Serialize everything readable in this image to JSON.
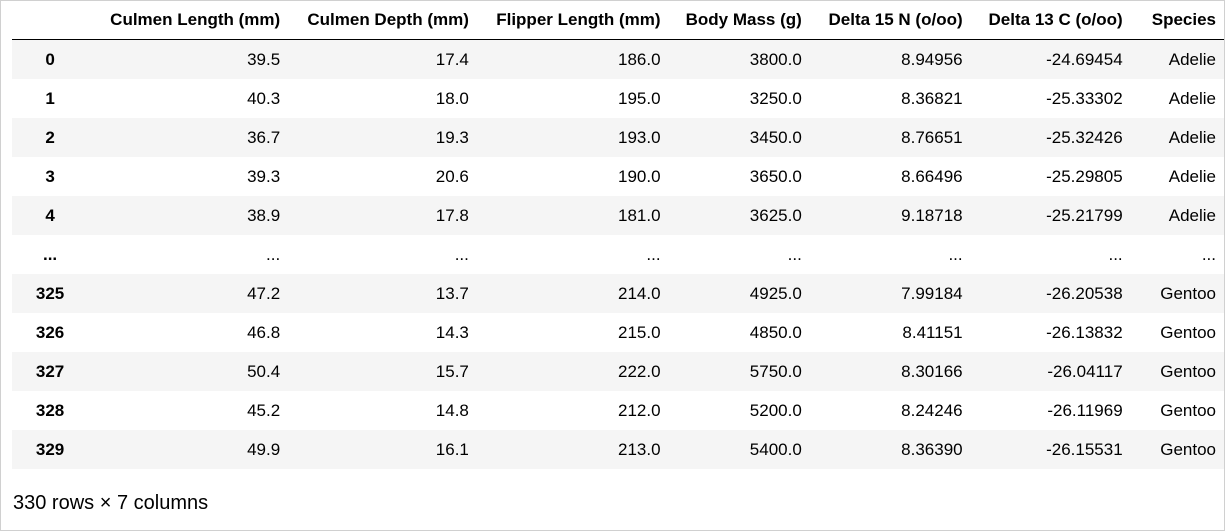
{
  "table": {
    "columns": [
      "Culmen Length (mm)",
      "Culmen Depth (mm)",
      "Flipper Length (mm)",
      "Body Mass (g)",
      "Delta 15 N (o/oo)",
      "Delta 13 C (o/oo)",
      "Species"
    ],
    "rows": [
      {
        "index": "0",
        "cells": [
          "39.5",
          "17.4",
          "186.0",
          "3800.0",
          "8.94956",
          "-24.69454",
          "Adelie"
        ]
      },
      {
        "index": "1",
        "cells": [
          "40.3",
          "18.0",
          "195.0",
          "3250.0",
          "8.36821",
          "-25.33302",
          "Adelie"
        ]
      },
      {
        "index": "2",
        "cells": [
          "36.7",
          "19.3",
          "193.0",
          "3450.0",
          "8.76651",
          "-25.32426",
          "Adelie"
        ]
      },
      {
        "index": "3",
        "cells": [
          "39.3",
          "20.6",
          "190.0",
          "3650.0",
          "8.66496",
          "-25.29805",
          "Adelie"
        ]
      },
      {
        "index": "4",
        "cells": [
          "38.9",
          "17.8",
          "181.0",
          "3625.0",
          "9.18718",
          "-25.21799",
          "Adelie"
        ]
      },
      {
        "index": "...",
        "cells": [
          "...",
          "...",
          "...",
          "...",
          "...",
          "...",
          "..."
        ]
      },
      {
        "index": "325",
        "cells": [
          "47.2",
          "13.7",
          "214.0",
          "4925.0",
          "7.99184",
          "-26.20538",
          "Gentoo"
        ]
      },
      {
        "index": "326",
        "cells": [
          "46.8",
          "14.3",
          "215.0",
          "4850.0",
          "8.41151",
          "-26.13832",
          "Gentoo"
        ]
      },
      {
        "index": "327",
        "cells": [
          "50.4",
          "15.7",
          "222.0",
          "5750.0",
          "8.30166",
          "-26.04117",
          "Gentoo"
        ]
      },
      {
        "index": "328",
        "cells": [
          "45.2",
          "14.8",
          "212.0",
          "5200.0",
          "8.24246",
          "-26.11969",
          "Gentoo"
        ]
      },
      {
        "index": "329",
        "cells": [
          "49.9",
          "16.1",
          "213.0",
          "5400.0",
          "8.36390",
          "-26.15531",
          "Gentoo"
        ]
      }
    ]
  },
  "shape_text": "330 rows × 7 columns"
}
